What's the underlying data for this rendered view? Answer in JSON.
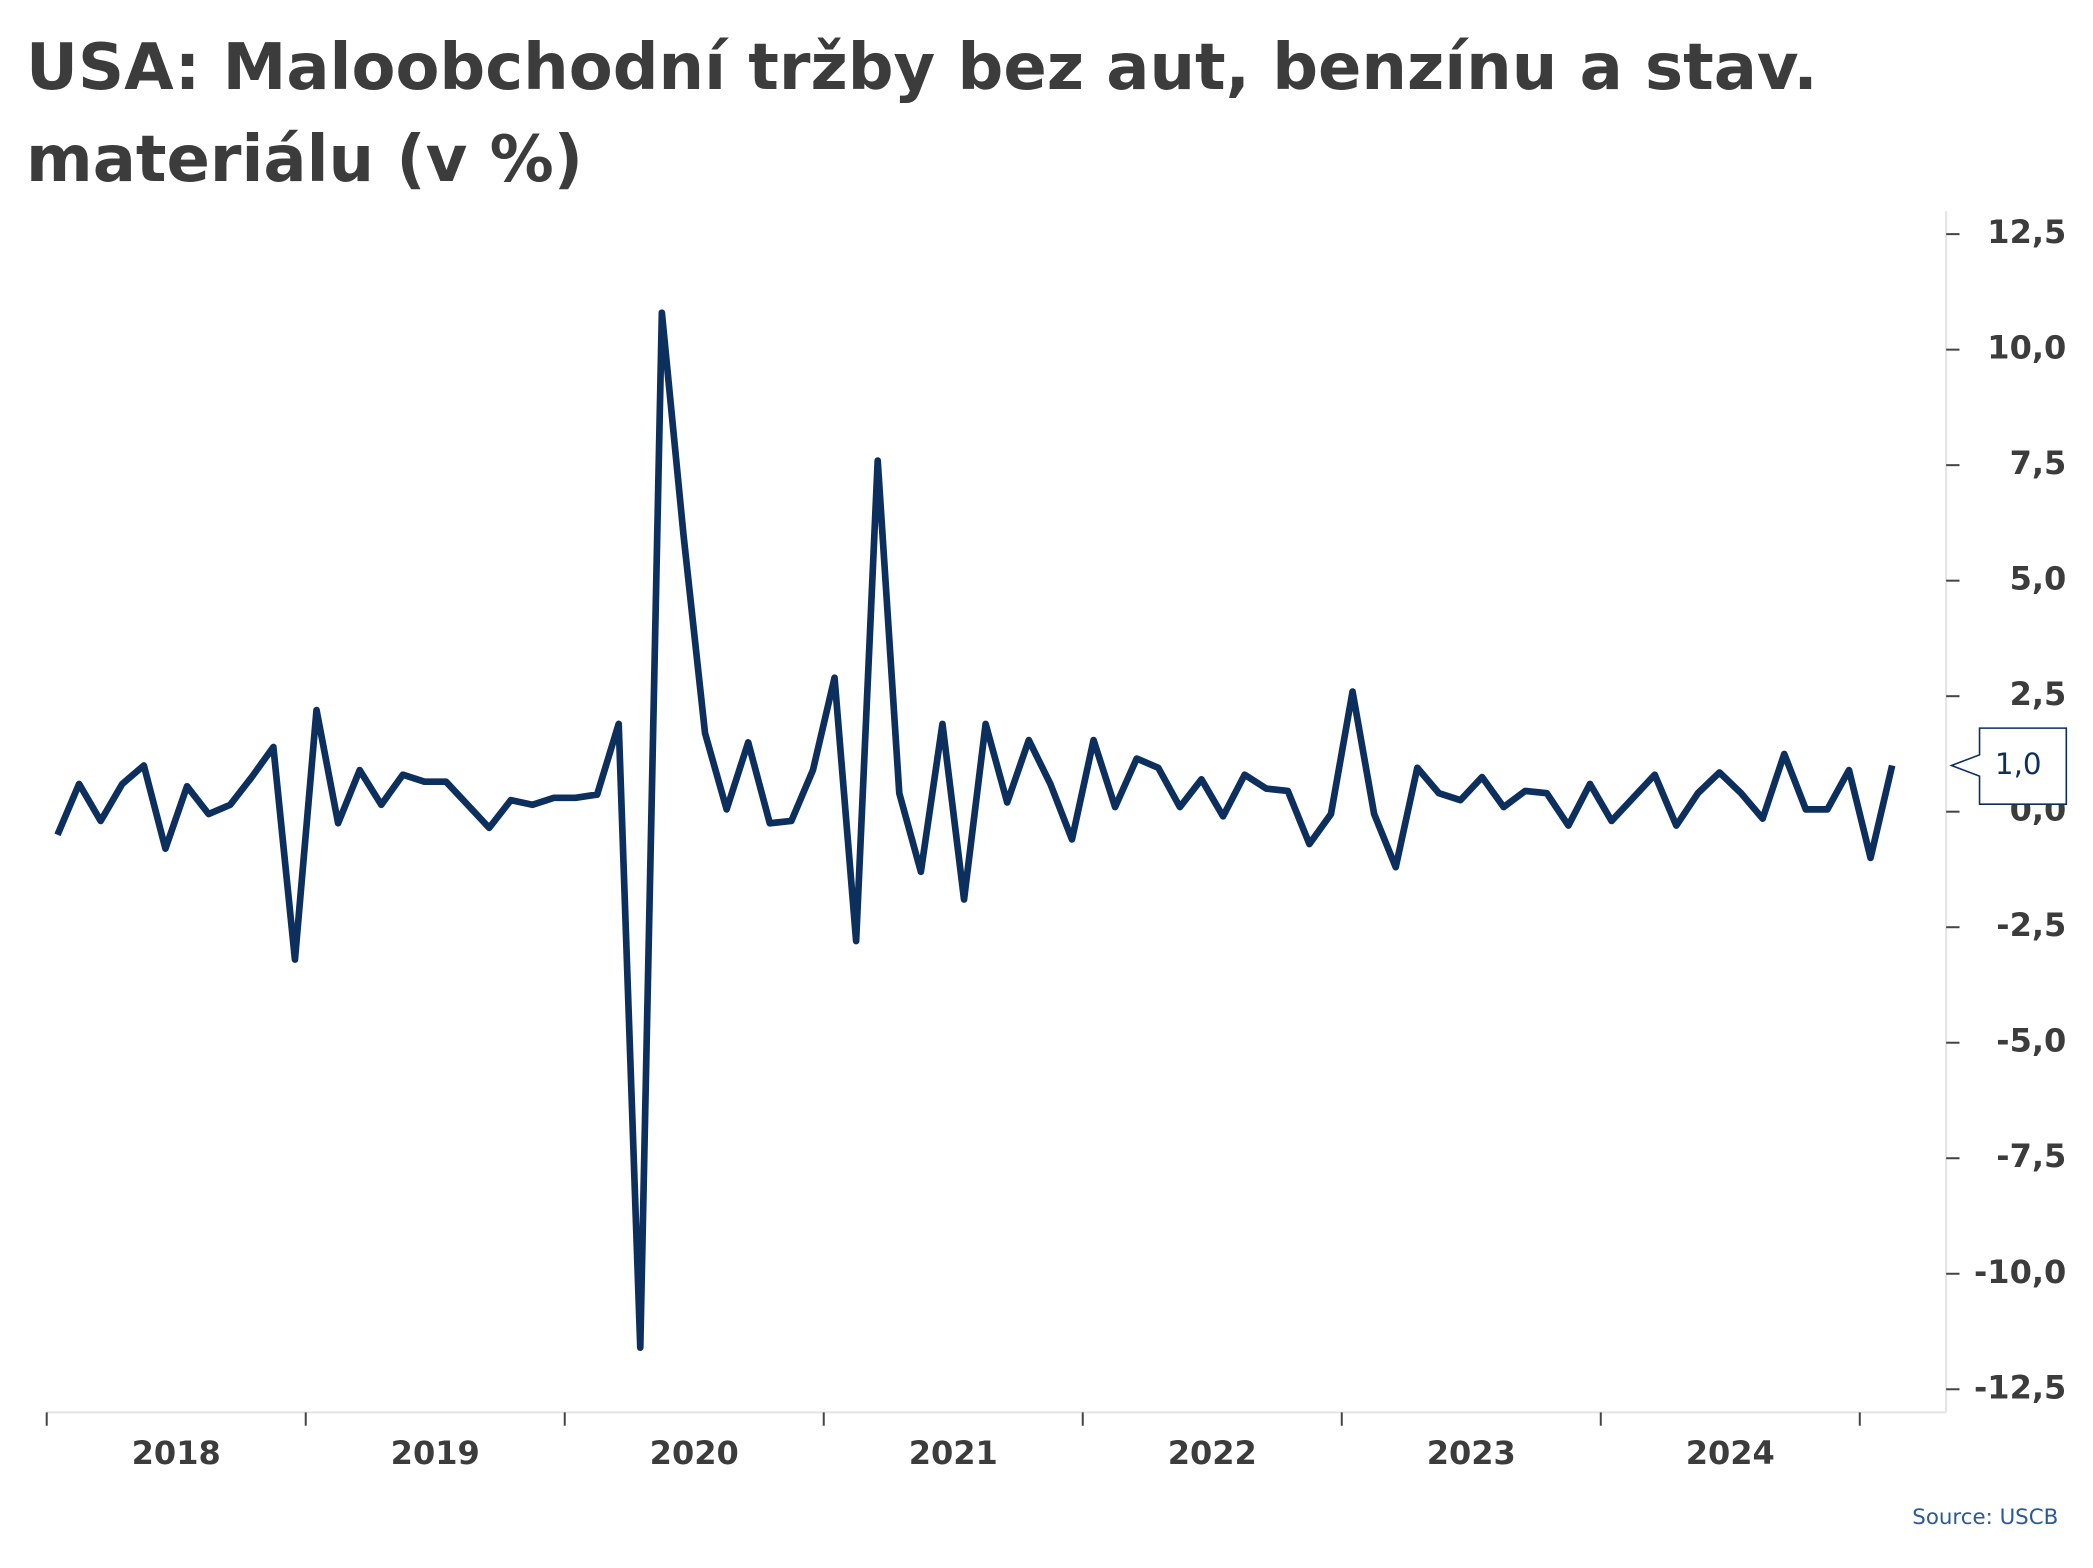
{
  "chart_data": {
    "type": "line",
    "title": "USA: Maloobchodní tržby bez aut, benzínu a stav. materiálu (v %)",
    "source": "Source: USCB",
    "color": "#0c2f5e",
    "categories": [
      "2018",
      null,
      null,
      null,
      null,
      null,
      null,
      null,
      null,
      null,
      null,
      null,
      "2019",
      null,
      null,
      null,
      null,
      null,
      null,
      null,
      null,
      null,
      null,
      null,
      "2020",
      null,
      null,
      null,
      null,
      null,
      null,
      null,
      null,
      null,
      null,
      null,
      "2021",
      null,
      null,
      null,
      null,
      null,
      null,
      null,
      null,
      null,
      null,
      null,
      "2022",
      null,
      null,
      null,
      null,
      null,
      null,
      null,
      null,
      null,
      null,
      null,
      "2023",
      null,
      null,
      null,
      null,
      null,
      null,
      null,
      null,
      null,
      null,
      null,
      "2024",
      null,
      null,
      null,
      null,
      null,
      null,
      null,
      null,
      null,
      null,
      null,
      null,
      null
    ],
    "values": [
      -0.5,
      0.6,
      -0.2,
      0.6,
      1.0,
      -0.8,
      0.55,
      -0.05,
      0.15,
      0.75,
      1.4,
      -3.2,
      2.2,
      -0.25,
      0.9,
      0.15,
      0.8,
      0.65,
      0.65,
      0.15,
      -0.35,
      0.25,
      0.15,
      0.3,
      0.3,
      0.37,
      1.9,
      -11.6,
      10.8,
      6.0,
      1.7,
      0.05,
      1.5,
      -0.25,
      -0.2,
      0.9,
      2.9,
      -2.8,
      7.6,
      0.4,
      -1.3,
      1.9,
      -1.9,
      1.9,
      0.2,
      1.55,
      0.6,
      -0.6,
      1.55,
      0.1,
      1.15,
      0.95,
      0.1,
      0.7,
      -0.1,
      0.8,
      0.5,
      0.45,
      -0.7,
      -0.05,
      2.6,
      -0.05,
      -1.2,
      0.95,
      0.4,
      0.25,
      0.75,
      0.1,
      0.45,
      0.4,
      -0.3,
      0.6,
      -0.2,
      0.3,
      0.8,
      -0.3,
      0.4,
      0.85,
      0.4,
      -0.15,
      1.25,
      0.05,
      0.05,
      0.9,
      -1.0,
      1.0
    ],
    "value_labels": [
      null,
      null,
      null,
      null,
      null,
      null,
      null,
      null,
      null,
      null,
      null,
      null,
      null,
      null,
      null,
      null,
      null,
      null,
      null,
      null,
      null,
      null,
      null,
      null,
      null,
      null,
      null,
      null,
      null,
      null,
      null,
      null,
      null,
      null,
      null,
      null,
      null,
      null,
      null,
      null,
      null,
      null,
      null,
      null,
      null,
      null,
      null,
      null,
      null,
      null,
      null,
      null,
      null,
      null,
      null,
      null,
      null,
      null,
      null,
      null,
      null,
      null,
      null,
      null,
      null,
      null,
      null,
      null,
      null,
      null,
      null,
      null,
      null,
      null,
      null,
      null,
      null,
      null,
      null,
      null,
      null,
      null,
      null,
      null,
      null,
      "1,0"
    ],
    "ylim": [
      -13,
      13
    ],
    "yticks": [
      {
        "value": 12.5,
        "label": "12,5"
      },
      {
        "value": 10,
        "label": "10,0"
      },
      {
        "value": 7.5,
        "label": "7,5"
      },
      {
        "value": 5,
        "label": "5,0"
      },
      {
        "value": 2.5,
        "label": "2,5"
      },
      {
        "value": 0,
        "label": "0,0"
      },
      {
        "value": -2.5,
        "label": "-2,5"
      },
      {
        "value": -5,
        "label": "-5,0"
      },
      {
        "value": -7.5,
        "label": "-7,5"
      },
      {
        "value": -10,
        "label": "-10,0"
      },
      {
        "value": -12.5,
        "label": "-12,5"
      }
    ],
    "grid": false
  }
}
